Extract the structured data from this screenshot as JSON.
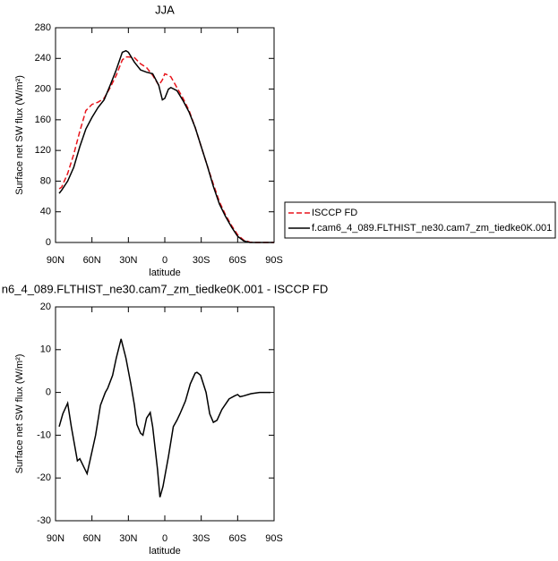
{
  "chart_data": [
    {
      "type": "line",
      "title": "JJA",
      "xlabel": "latitude",
      "ylabel": "Surface net SW flux (W/m²)",
      "xlim": [
        90,
        -90
      ],
      "xticks": [
        {
          "value": 90,
          "label": "90N"
        },
        {
          "value": 60,
          "label": "60N"
        },
        {
          "value": 30,
          "label": "30N"
        },
        {
          "value": 0,
          "label": "0"
        },
        {
          "value": -30,
          "label": "30S"
        },
        {
          "value": -60,
          "label": "60S"
        },
        {
          "value": -90,
          "label": "90S"
        }
      ],
      "ylim": [
        0,
        280
      ],
      "yticks": [
        0,
        40,
        80,
        120,
        160,
        200,
        240,
        280
      ],
      "legend": "outside-right",
      "x": [
        87,
        85,
        80,
        75,
        70,
        65,
        60,
        55,
        50,
        45,
        40,
        35,
        32,
        30,
        25,
        20,
        15,
        10,
        5,
        2,
        0,
        -3,
        -5,
        -10,
        -15,
        -20,
        -25,
        -30,
        -35,
        -40,
        -45,
        -50,
        -55,
        -60,
        -65,
        -70,
        -75,
        -80,
        -85,
        -90
      ],
      "series": [
        {
          "name": "ISCCP FD",
          "color": "#e8141b",
          "dash": true,
          "values": [
            70,
            72,
            90,
            115,
            145,
            172,
            180,
            183,
            188,
            202,
            218,
            238,
            242,
            242,
            241,
            233,
            228,
            218,
            205,
            212,
            220,
            218,
            216,
            202,
            188,
            172,
            150,
            125,
            100,
            76,
            53,
            36,
            22,
            10,
            3,
            0.5,
            0,
            0,
            0,
            0
          ]
        },
        {
          "name": "f.cam6_4_089.FLTHIST_ne30.cam7_zm_tiedke0K.001",
          "color": "#000000",
          "dash": false,
          "values": [
            64,
            68,
            80,
            98,
            125,
            148,
            163,
            176,
            186,
            205,
            225,
            248,
            250,
            248,
            235,
            225,
            222,
            220,
            205,
            186,
            188,
            200,
            202,
            198,
            185,
            170,
            150,
            125,
            100,
            73,
            50,
            34,
            20,
            8,
            2,
            0,
            0,
            0,
            0,
            0
          ]
        }
      ]
    },
    {
      "type": "line",
      "title": "n6_4_089.FLTHIST_ne30.cam7_zm_tiedke0K.001 - ISCCP FD",
      "xlabel": "latitude",
      "ylabel": "Surface net SW flux (W/m²)",
      "xlim": [
        90,
        -90
      ],
      "xticks": [
        {
          "value": 90,
          "label": "90N"
        },
        {
          "value": 60,
          "label": "60N"
        },
        {
          "value": 30,
          "label": "30N"
        },
        {
          "value": 0,
          "label": "0"
        },
        {
          "value": -30,
          "label": "30S"
        },
        {
          "value": -60,
          "label": "60S"
        },
        {
          "value": -90,
          "label": "90S"
        }
      ],
      "ylim": [
        -30,
        20
      ],
      "yticks": [
        -30,
        -20,
        -10,
        0,
        10,
        20
      ],
      "x": [
        87,
        84,
        80,
        77,
        72,
        70,
        64,
        57,
        53,
        49,
        47,
        43,
        40,
        36,
        32,
        28,
        25,
        23,
        20,
        18,
        15,
        12,
        10,
        6,
        4,
        1.5,
        -3,
        -7,
        -10,
        -12.5,
        -17,
        -21,
        -25,
        -26.5,
        -29.5,
        -34,
        -37,
        -40,
        -43,
        -47,
        -53,
        -57.5,
        -60,
        -62,
        -65,
        -71,
        -78,
        -87
      ],
      "series": [
        {
          "color": "#000000",
          "dash": false,
          "values": [
            -8,
            -5,
            -2.5,
            -8,
            -16,
            -15.5,
            -19,
            -10,
            -3,
            0,
            1,
            4,
            8,
            12.5,
            8,
            2,
            -3,
            -7.5,
            -9.5,
            -10,
            -6,
            -4.7,
            -8,
            -18,
            -24.5,
            -22,
            -15,
            -8,
            -6.5,
            -5,
            -2,
            2,
            4.5,
            4.7,
            4,
            0,
            -5,
            -7,
            -6.5,
            -4,
            -1.5,
            -0.8,
            -0.5,
            -1,
            -0.8,
            -0.3,
            0,
            0
          ]
        }
      ]
    }
  ]
}
